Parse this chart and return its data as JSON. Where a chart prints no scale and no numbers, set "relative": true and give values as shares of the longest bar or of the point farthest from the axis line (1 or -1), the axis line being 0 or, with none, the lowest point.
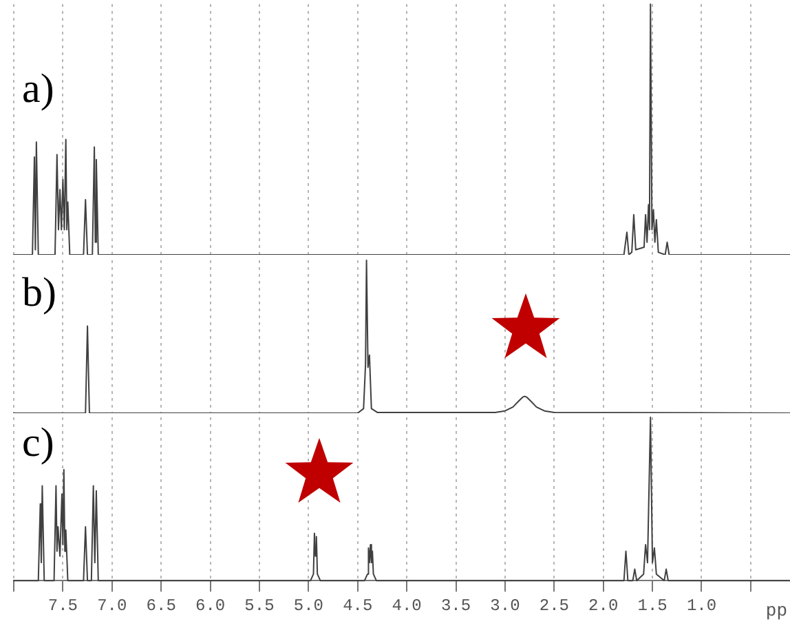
{
  "chart_data": [
    {
      "type": "line",
      "title": "a)",
      "relative": true,
      "grid": "x",
      "marker": "none",
      "tick_labels": false,
      "color": "#404040",
      "xlim": [
        8.0,
        0.1
      ],
      "xticks": [
        8,
        7.5,
        7,
        6.5,
        6,
        5.5,
        5,
        4.5,
        4,
        3.5,
        3,
        2.5,
        2,
        1.5,
        1,
        0.5
      ],
      "x": [
        8.0,
        7.81,
        7.79,
        7.78,
        7.77,
        7.75,
        7.58,
        7.56,
        7.545,
        7.53,
        7.515,
        7.5,
        7.485,
        7.47,
        7.46,
        7.45,
        7.43,
        7.29,
        7.27,
        7.25,
        7.2,
        7.18,
        7.17,
        7.16,
        7.14,
        1.79,
        1.76,
        1.74,
        1.71,
        1.69,
        1.67,
        1.585,
        1.57,
        1.555,
        1.54,
        1.53,
        1.52,
        1.505,
        1.49,
        1.475,
        1.46,
        1.44,
        1.37,
        1.35,
        1.33,
        0.1
      ],
      "values": [
        0,
        0,
        0.39,
        0.02,
        0.45,
        0,
        0,
        0.4,
        0.1,
        0.26,
        0.1,
        0.3,
        0.1,
        0.46,
        0.1,
        0.21,
        0,
        0,
        0.22,
        0,
        0,
        0.43,
        0.05,
        0.38,
        0,
        0,
        0.09,
        0,
        0.01,
        0.16,
        0.02,
        0.03,
        0.16,
        0.05,
        0.2,
        0.1,
        1,
        0.1,
        0.18,
        0.05,
        0.14,
        0.01,
        0,
        0.05,
        0,
        0
      ]
    },
    {
      "type": "line",
      "title": "b)",
      "relative": true,
      "grid": "x",
      "marker": "none",
      "tick_labels": false,
      "color": "#404040",
      "xlim": [
        8.0,
        0.1
      ],
      "xticks": [
        8,
        7.5,
        7,
        6.5,
        6,
        5.5,
        5,
        4.5,
        4,
        3.5,
        3,
        2.5,
        2,
        1.5,
        1,
        0.5
      ],
      "x": [
        8.0,
        7.27,
        7.25,
        7.23,
        4.5,
        4.44,
        4.42,
        4.41,
        4.395,
        4.38,
        4.36,
        4.3,
        3.1,
        3.0,
        2.92,
        2.86,
        2.82,
        2.8,
        2.78,
        2.74,
        2.68,
        2.6,
        2.5,
        0.1
      ],
      "values": [
        0,
        0,
        0.57,
        0,
        0,
        0.03,
        0.32,
        1,
        0.3,
        0.38,
        0.03,
        0.005,
        0.005,
        0.015,
        0.04,
        0.08,
        0.105,
        0.11,
        0.105,
        0.08,
        0.04,
        0.015,
        0.005,
        0
      ]
    },
    {
      "type": "line",
      "title": "c)",
      "xlabel": "pp",
      "relative": true,
      "grid": "x",
      "marker": "none",
      "tick_labels": "x",
      "color": "#404040",
      "xlim": [
        8.0,
        0.1
      ],
      "xticks": [
        {
          "value": 8,
          "label": null
        },
        7.5,
        {
          "value": 7,
          "label": "7.0"
        },
        6.5,
        {
          "value": 6,
          "label": "6.0"
        },
        5.5,
        {
          "value": 5,
          "label": "5.0"
        },
        4.5,
        {
          "value": 4,
          "label": "4.0"
        },
        3.5,
        {
          "value": 3,
          "label": "3.0"
        },
        2.5,
        {
          "value": 2,
          "label": "2.0"
        },
        1.5,
        {
          "value": 1,
          "label": "1.0"
        },
        {
          "value": 0.5,
          "label": null
        }
      ],
      "x": [
        8.0,
        7.75,
        7.73,
        7.72,
        7.71,
        7.69,
        7.59,
        7.57,
        7.56,
        7.55,
        7.53,
        7.51,
        7.5,
        7.49,
        7.48,
        7.47,
        7.45,
        7.29,
        7.27,
        7.25,
        7.21,
        7.19,
        7.175,
        7.16,
        7.14,
        4.98,
        4.95,
        4.94,
        4.93,
        4.92,
        4.91,
        4.88,
        4.43,
        4.4,
        4.39,
        4.38,
        4.37,
        4.36,
        4.35,
        4.34,
        4.31,
        1.79,
        1.77,
        1.75,
        1.7,
        1.68,
        1.66,
        1.59,
        1.57,
        1.55,
        1.52,
        1.5,
        1.48,
        1.46,
        1.38,
        1.36,
        1.34,
        0.1
      ],
      "values": [
        0,
        0,
        0.47,
        0.11,
        0.58,
        0,
        0,
        0.58,
        0.18,
        0.33,
        0.15,
        0.53,
        0.22,
        0.68,
        0.18,
        0.31,
        0,
        0,
        0.33,
        0,
        0,
        0.58,
        0.11,
        0.55,
        0,
        0,
        0.04,
        0.29,
        0.15,
        0.27,
        0.04,
        0,
        0,
        0.04,
        0.2,
        0.11,
        0.22,
        0.11,
        0.18,
        0.04,
        0,
        0,
        0.18,
        0,
        0,
        0.07,
        0,
        0.04,
        0.22,
        0.11,
        1,
        0.11,
        0.2,
        0.04,
        0,
        0.07,
        0,
        0
      ]
    }
  ]
}
